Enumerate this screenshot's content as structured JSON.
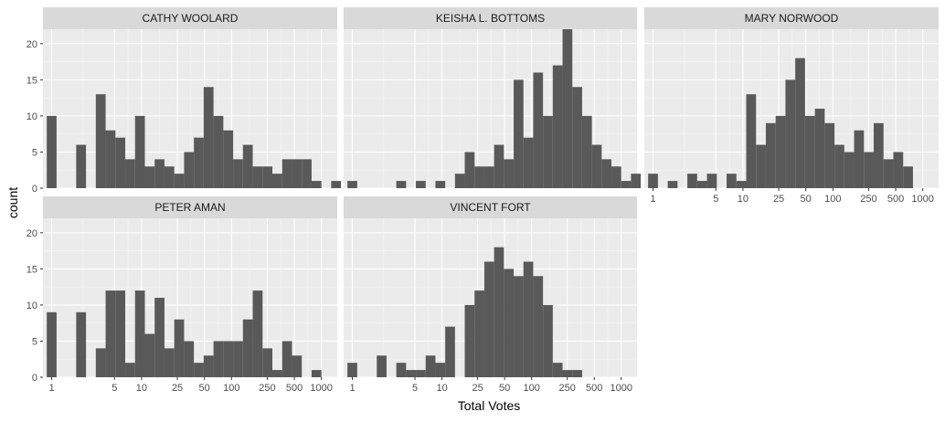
{
  "chart_data": {
    "type": "bar",
    "xlabel": "Total Votes",
    "ylabel": "count",
    "x_scale": "log10",
    "xlim": [
      0.8,
      1500
    ],
    "ylim": [
      0,
      22
    ],
    "x_ticks": [
      1,
      5,
      10,
      25,
      50,
      100,
      250,
      500,
      1000
    ],
    "x_tick_labels": [
      "1",
      "5",
      "10",
      "25",
      "50",
      "100",
      "250",
      "500",
      "1000"
    ],
    "y_ticks": [
      0,
      5,
      10,
      15,
      20
    ],
    "y_tick_labels": [
      "0",
      "5",
      "10",
      "15",
      "20"
    ],
    "grid": true,
    "bar_color": "#595959",
    "panel_background": "#ebebeb",
    "strip_background": "#d9d9d9",
    "panels": [
      {
        "name": "CATHY WOOLARD",
        "counts": [
          10,
          0,
          0,
          6,
          0,
          13,
          8,
          7,
          4,
          10,
          3,
          4,
          3,
          2,
          5,
          7,
          14,
          10,
          8,
          4,
          6,
          3,
          3,
          2,
          4,
          4,
          4,
          1,
          0,
          1
        ]
      },
      {
        "name": "KEISHA L. BOTTOMS",
        "counts": [
          1,
          0,
          0,
          0,
          0,
          1,
          0,
          1,
          0,
          1,
          0,
          2,
          5,
          3,
          3,
          6,
          4,
          15,
          7,
          16,
          10,
          17,
          22,
          14,
          10,
          6,
          4,
          3,
          1,
          2
        ]
      },
      {
        "name": "MARY NORWOOD",
        "counts": [
          2,
          0,
          1,
          0,
          2,
          1,
          2,
          0,
          2,
          1,
          13,
          6,
          9,
          10,
          15,
          18,
          10,
          11,
          9,
          6,
          5,
          8,
          5,
          9,
          4,
          5,
          3
        ]
      },
      {
        "name": "PETER AMAN",
        "counts": [
          9,
          0,
          0,
          9,
          0,
          4,
          12,
          12,
          2,
          12,
          6,
          11,
          4,
          8,
          5,
          2,
          3,
          5,
          5,
          5,
          8,
          12,
          4,
          1,
          5,
          3,
          0,
          1
        ]
      },
      {
        "name": "VINCENT FORT",
        "counts": [
          2,
          0,
          0,
          3,
          0,
          2,
          1,
          1,
          3,
          2,
          7,
          0,
          10,
          12,
          16,
          18,
          15,
          14,
          16,
          14,
          10,
          2,
          1,
          1
        ]
      }
    ]
  }
}
